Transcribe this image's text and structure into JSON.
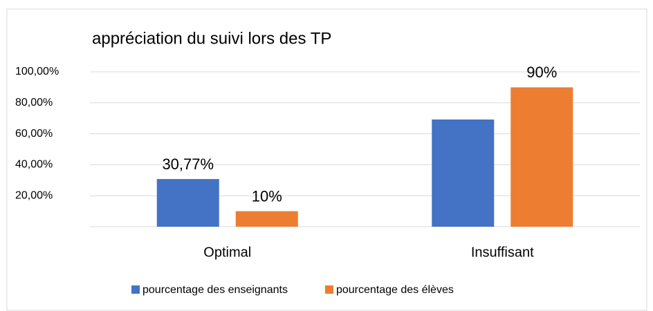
{
  "chart_data": {
    "type": "bar",
    "title": "appréciation du suivi lors des TP",
    "categories": [
      "Optimal",
      "Insuffisant"
    ],
    "series": [
      {
        "name": "pourcentage des enseignants",
        "color": "#4472c4",
        "values": [
          30.77,
          69.23
        ],
        "value_labels": [
          "30,77%",
          null
        ]
      },
      {
        "name": "pourcentage des élèves",
        "color": "#ed7d31",
        "values": [
          10,
          90
        ],
        "value_labels": [
          "10%",
          "90%"
        ]
      }
    ],
    "ylim": [
      0,
      100
    ],
    "yticks": [
      {
        "value": 20,
        "label": "20,00%"
      },
      {
        "value": 40,
        "label": "40,00%"
      },
      {
        "value": 60,
        "label": "60,00%"
      },
      {
        "value": 80,
        "label": "80,00%"
      },
      {
        "value": 100,
        "label": "100,00%"
      }
    ],
    "grid": true,
    "legend": "bottom"
  }
}
